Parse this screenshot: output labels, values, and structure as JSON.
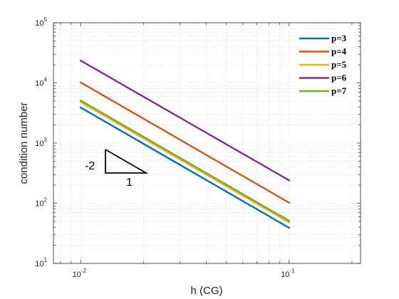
{
  "chart_data": {
    "type": "line",
    "xlabel": "h (CG)",
    "ylabel": "condition number",
    "x_scale": "log",
    "y_scale": "log",
    "xlim": [
      0.0074,
      0.22
    ],
    "ylim": [
      10,
      100000
    ],
    "grid": true,
    "legend_position": "top-right",
    "x_ticks": [
      {
        "base": "10",
        "exp": "-2",
        "value": 0.01
      },
      {
        "base": "10",
        "exp": "-1",
        "value": 0.1
      }
    ],
    "y_ticks": [
      {
        "base": "10",
        "exp": "1",
        "value": 10
      },
      {
        "base": "10",
        "exp": "2",
        "value": 100
      },
      {
        "base": "10",
        "exp": "3",
        "value": 1000
      },
      {
        "base": "10",
        "exp": "4",
        "value": 10000
      },
      {
        "base": "10",
        "exp": "5",
        "value": 100000
      }
    ],
    "x": [
      0.01,
      0.1
    ],
    "series": [
      {
        "name": "p=3",
        "color": "#0072BD",
        "values": [
          3900,
          39
        ]
      },
      {
        "name": "p=4",
        "color": "#D95319",
        "values": [
          10200,
          102
        ]
      },
      {
        "name": "p=5",
        "color": "#EDB120",
        "values": [
          4800,
          48
        ]
      },
      {
        "name": "p=6",
        "color": "#7E2F8E",
        "values": [
          23500,
          240
        ]
      },
      {
        "name": "p=7",
        "color": "#77AC30",
        "values": [
          5100,
          51
        ]
      }
    ],
    "annotations": {
      "slope_label": "-2",
      "run_label": "1"
    }
  }
}
